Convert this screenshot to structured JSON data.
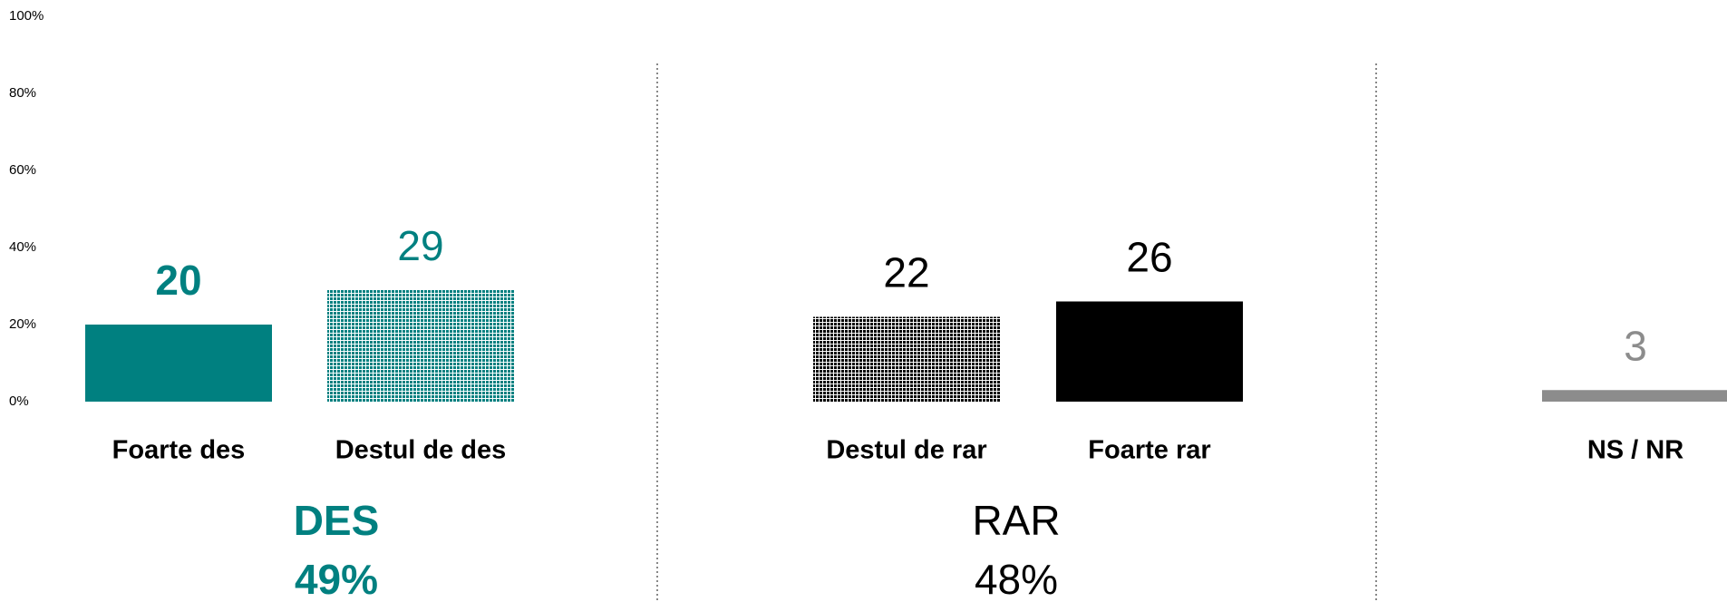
{
  "chart_data": {
    "type": "bar",
    "categories": [
      "Foarte des",
      "Destul de des",
      "Destul de rar",
      "Foarte rar",
      "NS / NR"
    ],
    "values": [
      20,
      29,
      22,
      26,
      3
    ],
    "colors": [
      "#008080",
      "#008080",
      "#000000",
      "#000000",
      "#8c8c8c"
    ],
    "patterns": [
      "solid",
      "dotted",
      "dotted",
      "solid",
      "solid"
    ],
    "ylim": [
      0,
      100
    ],
    "yticks": [
      {
        "value": 0,
        "label": "0%"
      },
      {
        "value": 20,
        "label": "20%"
      },
      {
        "value": 40,
        "label": "40%"
      },
      {
        "value": 60,
        "label": "60%"
      },
      {
        "value": 80,
        "label": "80%"
      },
      {
        "value": 100,
        "label": "100%"
      }
    ],
    "groups": [
      {
        "label": "DES",
        "value": 49,
        "value_label": "49%",
        "color": "#008080"
      },
      {
        "label": "RAR",
        "value": 48,
        "value_label": "48%",
        "color": "#000000"
      }
    ]
  }
}
